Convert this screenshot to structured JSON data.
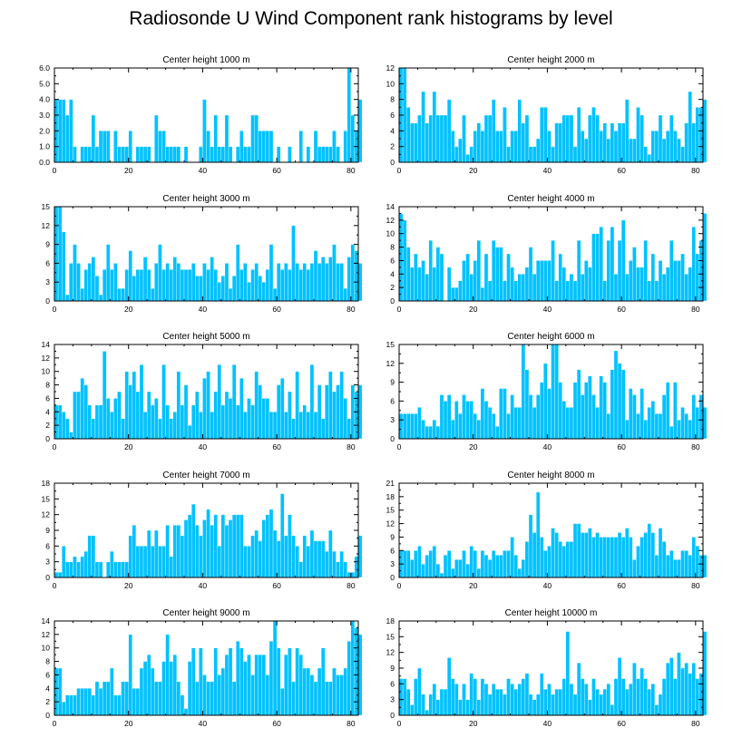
{
  "title": "Radiosonde U Wind Component rank histograms by level",
  "colors": {
    "bar": "#00c2ff",
    "bar_edge": "#ffffff",
    "axis": "#000000"
  },
  "chart_data": [
    {
      "type": "bar",
      "title": "Center height 1000 m",
      "xlim": [
        0,
        82
      ],
      "ylim": [
        0,
        6
      ],
      "xticks": [
        0,
        20,
        40,
        60,
        80
      ],
      "yticks": [
        0,
        1,
        2,
        3,
        4,
        5,
        6
      ],
      "ytick_labels": [
        "0.0",
        "1.0",
        "2.0",
        "3.0",
        "4.0",
        "5.0",
        "6.0"
      ],
      "values": [
        4,
        4,
        4,
        3,
        4,
        1,
        0,
        1,
        1,
        1,
        3,
        1,
        2,
        2,
        2,
        0,
        2,
        1,
        1,
        1,
        2,
        0,
        1,
        1,
        1,
        1,
        0,
        3,
        2,
        2,
        1,
        1,
        1,
        1,
        0,
        1,
        0,
        0,
        0,
        1,
        4,
        2,
        1,
        3,
        1,
        1,
        3,
        1,
        0,
        1,
        2,
        1,
        1,
        3,
        3,
        2,
        2,
        2,
        2,
        0,
        1,
        0,
        0,
        1,
        0,
        0,
        2,
        0,
        1,
        0,
        2,
        1,
        1,
        1,
        1,
        2,
        1,
        0,
        2,
        6,
        3,
        2,
        4
      ]
    },
    {
      "type": "bar",
      "title": "Center height 2000 m",
      "xlim": [
        0,
        82
      ],
      "ylim": [
        0,
        12
      ],
      "xticks": [
        0,
        20,
        40,
        60,
        80
      ],
      "yticks": [
        0,
        2,
        4,
        6,
        8,
        10,
        12
      ],
      "ytick_labels": [
        "0",
        "2",
        "4",
        "6",
        "8",
        "10",
        "12"
      ],
      "values": [
        12,
        12,
        7,
        5,
        5,
        6,
        9,
        5,
        6,
        9,
        6,
        6,
        6,
        8,
        4,
        2,
        3,
        6,
        1,
        2,
        4,
        5,
        4,
        6,
        6,
        8,
        4,
        4,
        7,
        2,
        4,
        4,
        8,
        5,
        6,
        2,
        2,
        3,
        7,
        7,
        4,
        2,
        5,
        5,
        6,
        6,
        6,
        2,
        7,
        4,
        3,
        6,
        7,
        6,
        4,
        5,
        3,
        5,
        4,
        5,
        5,
        8,
        3,
        3,
        7,
        6,
        2,
        1,
        4,
        4,
        6,
        3,
        4,
        6,
        4,
        3,
        2,
        5,
        9,
        5,
        7,
        7,
        8
      ]
    },
    {
      "type": "bar",
      "title": "Center height 3000 m",
      "xlim": [
        0,
        82
      ],
      "ylim": [
        0,
        15
      ],
      "xticks": [
        0,
        20,
        40,
        60,
        80
      ],
      "yticks": [
        0,
        3,
        6,
        9,
        12,
        15
      ],
      "ytick_labels": [
        "0",
        "3",
        "6",
        "9",
        "12",
        "15"
      ],
      "values": [
        15,
        15,
        11,
        1,
        6,
        9,
        6,
        2,
        5,
        6,
        7,
        4,
        1,
        5,
        9,
        5,
        6,
        2,
        2,
        5,
        8,
        4,
        5,
        5,
        7,
        5,
        2,
        6,
        9,
        5,
        6,
        5,
        7,
        6,
        5,
        5,
        5,
        6,
        4,
        4,
        6,
        5,
        7,
        5,
        3,
        4,
        6,
        2,
        4,
        9,
        5,
        6,
        3,
        5,
        6,
        4,
        3,
        5,
        9,
        2,
        6,
        5,
        6,
        5,
        12,
        6,
        5,
        6,
        5,
        6,
        8,
        6,
        7,
        6,
        7,
        9,
        6,
        6,
        2,
        7,
        9,
        8,
        6
      ]
    },
    {
      "type": "bar",
      "title": "Center height 4000 m",
      "xlim": [
        0,
        82
      ],
      "ylim": [
        0,
        14
      ],
      "xticks": [
        0,
        20,
        40,
        60,
        80
      ],
      "yticks": [
        0,
        2,
        4,
        6,
        8,
        10,
        12,
        14
      ],
      "ytick_labels": [
        "0",
        "2",
        "4",
        "6",
        "8",
        "10",
        "12",
        "14"
      ],
      "values": [
        13,
        12,
        8,
        5,
        7,
        5,
        6,
        4,
        9,
        5,
        8,
        7,
        0,
        5,
        2,
        2,
        3,
        6,
        7,
        4,
        6,
        9,
        2,
        7,
        3,
        9,
        8,
        8,
        3,
        7,
        5,
        3,
        4,
        4,
        5,
        8,
        4,
        6,
        6,
        6,
        6,
        9,
        3,
        7,
        5,
        3,
        4,
        3,
        9,
        4,
        6,
        5,
        10,
        10,
        11,
        3,
        9,
        11,
        4,
        9,
        12,
        4,
        6,
        8,
        5,
        5,
        9,
        3,
        7,
        3,
        6,
        4,
        5,
        9,
        6,
        6,
        7,
        4,
        5,
        11,
        7,
        9,
        13
      ]
    },
    {
      "type": "bar",
      "title": "Center height 5000 m",
      "xlim": [
        0,
        82
      ],
      "ylim": [
        0,
        14
      ],
      "xticks": [
        0,
        20,
        40,
        60,
        80
      ],
      "yticks": [
        0,
        2,
        4,
        6,
        8,
        10,
        12,
        14
      ],
      "ytick_labels": [
        "0",
        "2",
        "4",
        "6",
        "8",
        "10",
        "12",
        "14"
      ],
      "values": [
        5,
        5,
        4,
        3,
        1,
        7,
        7,
        9,
        8,
        5,
        3,
        5,
        5,
        13,
        6,
        4,
        6,
        7,
        3,
        10,
        8,
        10,
        7,
        11,
        4,
        7,
        5,
        6,
        3,
        11,
        5,
        3,
        4,
        10,
        5,
        8,
        2,
        5,
        7,
        4,
        9,
        10,
        4,
        7,
        11,
        5,
        7,
        6,
        11,
        5,
        9,
        4,
        6,
        5,
        10,
        8,
        6,
        6,
        4,
        4,
        8,
        9,
        4,
        7,
        3,
        10,
        4,
        5,
        4,
        11,
        4,
        8,
        3,
        8,
        10,
        7,
        8,
        10,
        6,
        3,
        8,
        7,
        8
      ]
    },
    {
      "type": "bar",
      "title": "Center height 6000 m",
      "xlim": [
        0,
        82
      ],
      "ylim": [
        0,
        15
      ],
      "xticks": [
        0,
        20,
        40,
        60,
        80
      ],
      "yticks": [
        0,
        3,
        6,
        9,
        12,
        15
      ],
      "ytick_labels": [
        "0",
        "3",
        "6",
        "9",
        "12",
        "15"
      ],
      "values": [
        4,
        4,
        4,
        4,
        4,
        5,
        3,
        2,
        2,
        3,
        2,
        7,
        6,
        7,
        3,
        6,
        4,
        7,
        6,
        6,
        4,
        3,
        8,
        6,
        5,
        4,
        2,
        8,
        8,
        4,
        7,
        5,
        5,
        15,
        11,
        7,
        5,
        7,
        9,
        12,
        8,
        15,
        15,
        9,
        6,
        5,
        5,
        9,
        11,
        7,
        9,
        10,
        7,
        5,
        10,
        9,
        4,
        11,
        14,
        12,
        11,
        3,
        8,
        7,
        4,
        8,
        3,
        5,
        6,
        4,
        4,
        7,
        9,
        2,
        9,
        3,
        5,
        4,
        3,
        7,
        5,
        7,
        5
      ]
    },
    {
      "type": "bar",
      "title": "Center height 7000 m",
      "xlim": [
        0,
        82
      ],
      "ylim": [
        0,
        18
      ],
      "xticks": [
        0,
        20,
        40,
        60,
        80
      ],
      "yticks": [
        0,
        3,
        6,
        9,
        12,
        15,
        18
      ],
      "ytick_labels": [
        "0",
        "3",
        "6",
        "9",
        "12",
        "15",
        "18"
      ],
      "values": [
        1,
        1,
        6,
        3,
        3,
        4,
        3,
        4,
        5,
        8,
        8,
        3,
        3,
        0,
        3,
        5,
        3,
        3,
        3,
        3,
        8,
        10,
        6,
        6,
        6,
        9,
        6,
        9,
        6,
        6,
        10,
        4,
        10,
        10,
        8,
        11,
        12,
        14,
        10,
        8,
        11,
        13,
        10,
        12,
        6,
        12,
        10,
        11,
        12,
        12,
        12,
        6,
        6,
        8,
        9,
        7,
        11,
        12,
        13,
        9,
        7,
        16,
        8,
        12,
        8,
        6,
        3,
        8,
        6,
        9,
        7,
        7,
        7,
        5,
        9,
        5,
        3,
        5,
        3,
        1,
        1,
        4,
        8
      ]
    },
    {
      "type": "bar",
      "title": "Center height 8000 m",
      "xlim": [
        0,
        82
      ],
      "ylim": [
        0,
        21
      ],
      "xticks": [
        0,
        20,
        40,
        60,
        80
      ],
      "yticks": [
        0,
        3,
        6,
        9,
        12,
        15,
        18,
        21
      ],
      "ytick_labels": [
        "0",
        "3",
        "6",
        "9",
        "12",
        "15",
        "18",
        "21"
      ],
      "values": [
        6,
        6,
        6,
        4,
        6,
        7,
        3,
        5,
        6,
        7,
        3,
        1,
        5,
        6,
        2,
        4,
        4,
        6,
        3,
        7,
        6,
        2,
        6,
        5,
        4,
        6,
        5,
        5,
        6,
        6,
        9,
        5,
        2,
        4,
        8,
        14,
        10,
        19,
        9,
        6,
        7,
        11,
        10,
        8,
        7,
        8,
        8,
        12,
        12,
        10,
        10,
        11,
        9,
        10,
        9,
        9,
        9,
        9,
        9,
        10,
        9,
        11,
        9,
        4,
        7,
        9,
        10,
        12,
        10,
        5,
        11,
        8,
        5,
        6,
        4,
        4,
        6,
        6,
        5,
        9,
        7,
        5,
        5
      ]
    },
    {
      "type": "bar",
      "title": "Center height 9000 m",
      "xlim": [
        0,
        82
      ],
      "ylim": [
        0,
        14
      ],
      "xticks": [
        0,
        20,
        40,
        60,
        80
      ],
      "yticks": [
        0,
        2,
        4,
        6,
        8,
        10,
        12,
        14
      ],
      "ytick_labels": [
        "0",
        "2",
        "4",
        "6",
        "8",
        "10",
        "12",
        "14"
      ],
      "values": [
        7,
        7,
        2,
        3,
        3,
        3,
        4,
        4,
        4,
        4,
        3,
        5,
        4,
        5,
        5,
        7,
        3,
        3,
        5,
        5,
        12,
        4,
        4,
        7,
        8,
        9,
        7,
        5,
        5,
        8,
        12,
        8,
        9,
        5,
        3,
        1,
        8,
        10,
        5,
        10,
        6,
        5,
        5,
        10,
        6,
        7,
        9,
        10,
        5,
        11,
        10,
        8,
        9,
        6,
        9,
        9,
        9,
        6,
        11,
        14,
        10,
        4,
        9,
        10,
        5,
        10,
        9,
        7,
        7,
        6,
        5,
        7,
        10,
        5,
        5,
        7,
        6,
        6,
        7,
        11,
        14,
        13,
        12
      ]
    },
    {
      "type": "bar",
      "title": "Center height 10000 m",
      "xlim": [
        0,
        82
      ],
      "ylim": [
        0,
        18
      ],
      "xticks": [
        0,
        20,
        40,
        60,
        80
      ],
      "yticks": [
        0,
        3,
        6,
        9,
        12,
        15,
        18
      ],
      "ytick_labels": [
        "0",
        "3",
        "6",
        "9",
        "12",
        "15",
        "18"
      ],
      "values": [
        7,
        7,
        5,
        2,
        7,
        9,
        4,
        1,
        4,
        6,
        3,
        5,
        5,
        11,
        7,
        6,
        3,
        6,
        3,
        8,
        7,
        3,
        7,
        6,
        4,
        6,
        5,
        5,
        4,
        7,
        6,
        5,
        6,
        7,
        8,
        4,
        3,
        4,
        8,
        5,
        6,
        4,
        5,
        5,
        7,
        16,
        6,
        4,
        10,
        7,
        6,
        3,
        7,
        5,
        4,
        5,
        6,
        2,
        7,
        11,
        7,
        5,
        6,
        10,
        7,
        9,
        7,
        5,
        6,
        2,
        4,
        7,
        10,
        11,
        7,
        12,
        9,
        10,
        8,
        10,
        7,
        8,
        16
      ]
    }
  ]
}
